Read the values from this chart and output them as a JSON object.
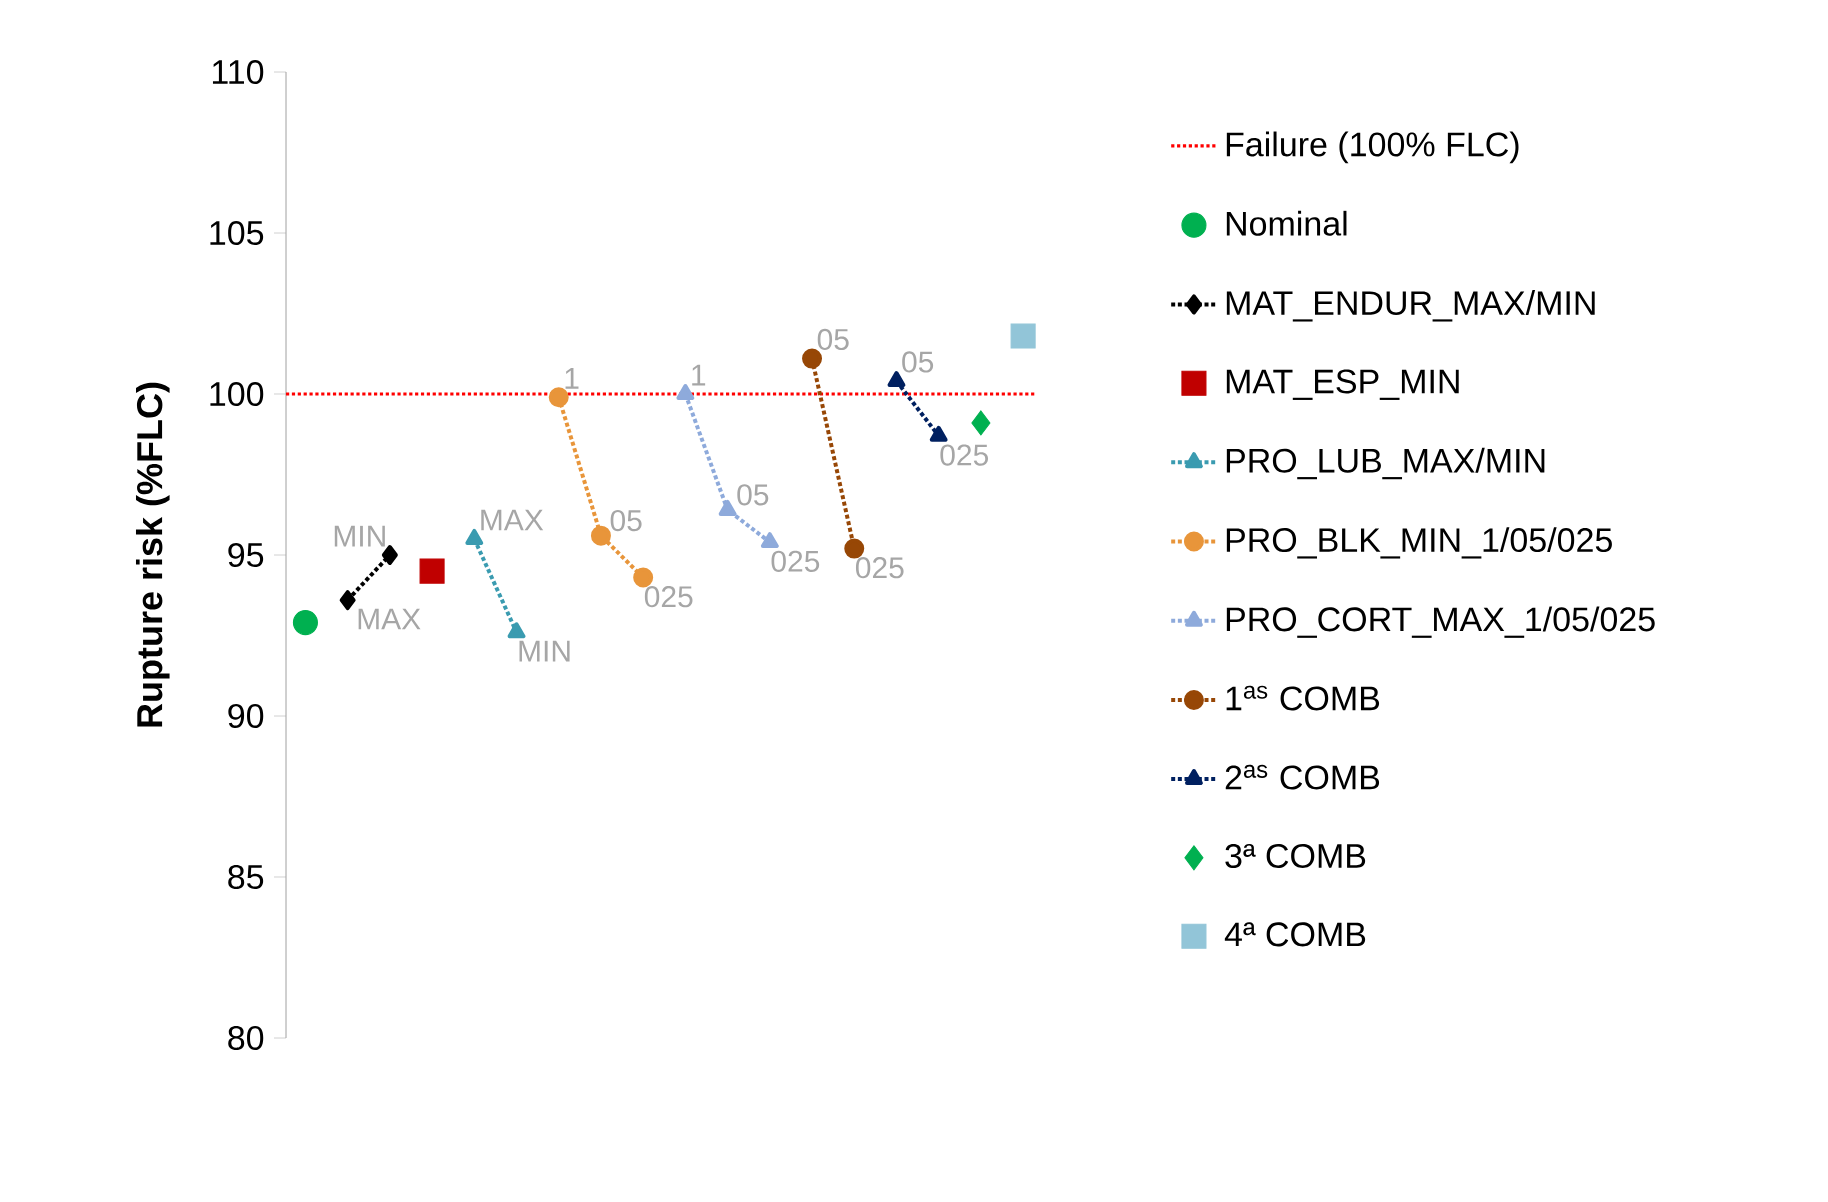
{
  "chart_data": {
    "type": "line",
    "ylabel": "Rupture risk (%FLC)",
    "categories": [
      null,
      null,
      null,
      null,
      null,
      null,
      null,
      null,
      null,
      null,
      null,
      null,
      null,
      null,
      null,
      null,
      null,
      null
    ],
    "ylim": [
      80,
      110
    ],
    "yticks": [
      80,
      85,
      90,
      95,
      100,
      105,
      110
    ],
    "grid": false,
    "legend": "right",
    "ref_lines": [
      {
        "axis": "y",
        "value": 100,
        "label": "Failure (100% FLC)",
        "color": "#ff0000",
        "line_style": "dotted"
      }
    ],
    "annotations": [
      "MAX",
      "MIN",
      "MAX",
      "MIN",
      "1",
      "05",
      "025",
      "1",
      "05",
      "025",
      "05",
      "025",
      "05",
      "025"
    ],
    "series": [
      {
        "name": "Nominal",
        "type": "scatter",
        "marker": "circle",
        "color": "#00b050",
        "values": [
          92.9,
          null,
          null,
          null,
          null,
          null,
          null,
          null,
          null,
          null,
          null,
          null,
          null,
          null,
          null,
          null,
          null,
          null
        ]
      },
      {
        "name": "MAT_ENDUR_MAX/MIN",
        "marker": "diamond",
        "line_style": "dotted",
        "color": "#000000",
        "values": [
          null,
          93.6,
          95.0,
          null,
          null,
          null,
          null,
          null,
          null,
          null,
          null,
          null,
          null,
          null,
          null,
          null,
          null,
          null
        ]
      },
      {
        "name": "MAT_ESP_MIN",
        "type": "scatter",
        "marker": "square",
        "color": "#c00000",
        "values": [
          null,
          null,
          null,
          94.5,
          null,
          null,
          null,
          null,
          null,
          null,
          null,
          null,
          null,
          null,
          null,
          null,
          null,
          null
        ]
      },
      {
        "name": "PRO_LUB_MAX/MIN",
        "marker": "triangle",
        "line_style": "dotted",
        "color": "#3a9bb0",
        "values": [
          null,
          null,
          null,
          null,
          95.5,
          92.6,
          null,
          null,
          null,
          null,
          null,
          null,
          null,
          null,
          null,
          null,
          null,
          null
        ]
      },
      {
        "name": "PRO_BLK_MIN_1/05/025",
        "marker": "circle",
        "line_style": "dotted",
        "color": "#e8953a",
        "values": [
          null,
          null,
          null,
          null,
          null,
          null,
          99.9,
          95.6,
          94.3,
          null,
          null,
          null,
          null,
          null,
          null,
          null,
          null,
          null
        ]
      },
      {
        "name": "PRO_CORT_MAX_1/05/025",
        "marker": "triangle",
        "line_style": "dotted",
        "color": "#8eaadb",
        "values": [
          null,
          null,
          null,
          null,
          null,
          null,
          null,
          null,
          null,
          100.0,
          96.4,
          95.4,
          null,
          null,
          null,
          null,
          null,
          null
        ]
      },
      {
        "name": "1$^{as}$ COMB",
        "marker": "circle",
        "line_style": "dotted",
        "color": "#974706",
        "values": [
          null,
          null,
          null,
          null,
          null,
          null,
          null,
          null,
          null,
          null,
          null,
          null,
          101.1,
          95.2,
          null,
          null,
          null,
          null
        ]
      },
      {
        "name": "2$^{as}$ COMB",
        "marker": "triangle",
        "line_style": "dotted",
        "color": "#002060",
        "values": [
          null,
          null,
          null,
          null,
          null,
          null,
          null,
          null,
          null,
          null,
          null,
          null,
          null,
          null,
          100.4,
          98.7,
          null,
          null
        ]
      },
      {
        "name": "3ª COMB",
        "type": "scatter",
        "marker": "diamond",
        "color": "#00b050",
        "values": [
          null,
          null,
          null,
          null,
          null,
          null,
          null,
          null,
          null,
          null,
          null,
          null,
          null,
          null,
          null,
          null,
          99.1,
          null
        ]
      },
      {
        "name": "4ª COMB",
        "type": "scatter",
        "marker": "square",
        "color": "#92c5d8",
        "values": [
          null,
          null,
          null,
          null,
          null,
          null,
          null,
          null,
          null,
          null,
          null,
          null,
          null,
          null,
          null,
          null,
          null,
          101.8
        ]
      }
    ]
  }
}
